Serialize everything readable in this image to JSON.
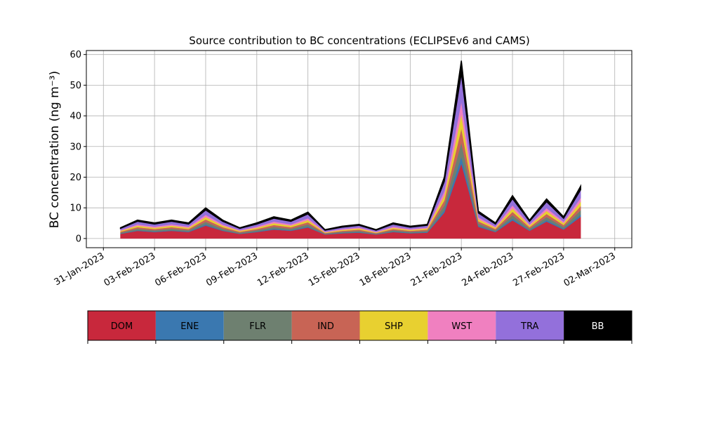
{
  "chart_data": {
    "type": "stacked-area",
    "title": "Source contribution to BC concentrations (ECLIPSEv6 and CAMS)",
    "y_label": "BC concentration (ng m⁻³)",
    "x": [
      "2023-02-01",
      "2023-02-02",
      "2023-02-03",
      "2023-02-04",
      "2023-02-05",
      "2023-02-06",
      "2023-02-07",
      "2023-02-08",
      "2023-02-09",
      "2023-02-10",
      "2023-02-11",
      "2023-02-12",
      "2023-02-13",
      "2023-02-14",
      "2023-02-15",
      "2023-02-16",
      "2023-02-17",
      "2023-02-18",
      "2023-02-19",
      "2023-02-20",
      "2023-02-21",
      "2023-02-22",
      "2023-02-23",
      "2023-02-24",
      "2023-02-25",
      "2023-02-26",
      "2023-02-27",
      "2023-02-28"
    ],
    "series": [
      {
        "name": "DOM",
        "color": "#c8283c",
        "values": [
          1.5,
          2.5,
          2.1,
          2.5,
          2.1,
          4.2,
          2.5,
          1.5,
          2.1,
          2.9,
          2.5,
          3.6,
          1.3,
          1.7,
          1.9,
          1.3,
          2.1,
          1.7,
          1.9,
          8.4,
          24.4,
          3.8,
          2.1,
          5.9,
          2.5,
          5.5,
          2.9,
          7.1
        ]
      },
      {
        "name": "ENE",
        "color": "#3a78b0",
        "values": [
          0.1,
          0.2,
          0.2,
          0.2,
          0.2,
          0.4,
          0.2,
          0.1,
          0.2,
          0.3,
          0.2,
          0.3,
          0.1,
          0.2,
          0.2,
          0.1,
          0.2,
          0.2,
          0.2,
          0.8,
          2.3,
          0.4,
          0.2,
          0.6,
          0.2,
          0.5,
          0.3,
          0.7
        ]
      },
      {
        "name": "FLR",
        "color": "#6e8070",
        "values": [
          0.3,
          0.5,
          0.4,
          0.5,
          0.4,
          0.8,
          0.5,
          0.3,
          0.4,
          0.6,
          0.5,
          0.7,
          0.2,
          0.3,
          0.4,
          0.2,
          0.4,
          0.3,
          0.4,
          1.6,
          4.6,
          0.7,
          0.4,
          1.1,
          0.5,
          1.0,
          0.6,
          1.4
        ]
      },
      {
        "name": "IND",
        "color": "#c86455",
        "values": [
          0.3,
          0.5,
          0.4,
          0.5,
          0.4,
          0.8,
          0.5,
          0.3,
          0.4,
          0.6,
          0.5,
          0.7,
          0.2,
          0.3,
          0.4,
          0.2,
          0.4,
          0.3,
          0.4,
          1.6,
          4.6,
          0.7,
          0.4,
          1.1,
          0.5,
          1.0,
          0.6,
          1.4
        ]
      },
      {
        "name": "SHP",
        "color": "#e8d030",
        "values": [
          0.3,
          0.5,
          0.4,
          0.5,
          0.4,
          0.8,
          0.5,
          0.3,
          0.4,
          0.6,
          0.5,
          0.7,
          0.2,
          0.3,
          0.4,
          0.2,
          0.4,
          0.3,
          0.4,
          1.6,
          4.6,
          0.7,
          0.4,
          1.1,
          0.5,
          1.0,
          0.6,
          1.4
        ]
      },
      {
        "name": "WST",
        "color": "#f080c0",
        "values": [
          0.2,
          0.4,
          0.4,
          0.4,
          0.4,
          0.7,
          0.4,
          0.2,
          0.4,
          0.5,
          0.4,
          0.6,
          0.2,
          0.3,
          0.3,
          0.2,
          0.4,
          0.3,
          0.3,
          1.4,
          4.1,
          0.6,
          0.4,
          1.0,
          0.4,
          0.9,
          0.5,
          1.2
        ]
      },
      {
        "name": "TRA",
        "color": "#9370db",
        "values": [
          0.6,
          1.0,
          0.8,
          1.0,
          0.8,
          1.6,
          1.0,
          0.6,
          0.8,
          1.1,
          1.0,
          1.4,
          0.5,
          0.6,
          0.7,
          0.5,
          0.8,
          0.6,
          0.7,
          3.2,
          9.3,
          1.4,
          0.8,
          2.2,
          1.0,
          2.1,
          1.1,
          2.7
        ]
      },
      {
        "name": "BB",
        "color": "#000000",
        "values": [
          0.2,
          0.4,
          0.4,
          0.4,
          0.4,
          0.7,
          0.4,
          0.2,
          0.4,
          0.5,
          0.4,
          0.6,
          0.2,
          0.3,
          0.3,
          0.2,
          0.4,
          0.3,
          0.3,
          1.4,
          4.1,
          0.6,
          0.4,
          1.0,
          0.4,
          0.9,
          0.5,
          1.2
        ]
      }
    ],
    "xlim": [
      "2023-01-30",
      "2023-03-03"
    ],
    "xticks": [
      {
        "value": "2023-01-31",
        "label": "31-Jan-2023"
      },
      {
        "value": "2023-02-03",
        "label": "03-Feb-2023"
      },
      {
        "value": "2023-02-06",
        "label": "06-Feb-2023"
      },
      {
        "value": "2023-02-09",
        "label": "09-Feb-2023"
      },
      {
        "value": "2023-02-12",
        "label": "12-Feb-2023"
      },
      {
        "value": "2023-02-15",
        "label": "15-Feb-2023"
      },
      {
        "value": "2023-02-18",
        "label": "18-Feb-2023"
      },
      {
        "value": "2023-02-21",
        "label": "21-Feb-2023"
      },
      {
        "value": "2023-02-24",
        "label": "24-Feb-2023"
      },
      {
        "value": "2023-02-27",
        "label": "27-Feb-2023"
      },
      {
        "value": "2023-03-02",
        "label": "02-Mar-2023"
      }
    ],
    "ylim": [
      -3,
      61.3
    ],
    "yticks": [
      0,
      10,
      20,
      30,
      40,
      50,
      60
    ],
    "grid": true,
    "legend": "bottom"
  }
}
